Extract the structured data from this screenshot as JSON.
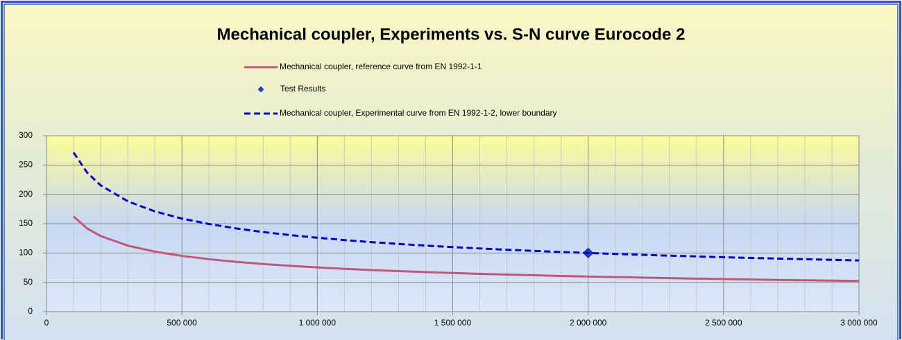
{
  "chart_data": {
    "type": "line",
    "title": "Mechanical coupler, Experiments vs. S-N curve Eurocode 2",
    "series": [
      {
        "name": "Mechanical coupler, reference curve from EN 1992-1-1",
        "color": "#c4557a",
        "style": "solid",
        "x": [
          100000,
          150000,
          200000,
          300000,
          400000,
          500000,
          600000,
          700000,
          800000,
          900000,
          1000000,
          1100000,
          1200000,
          1300000,
          1400000,
          1500000,
          1600000,
          1700000,
          1800000,
          1900000,
          2000000,
          2100000,
          2200000,
          2300000,
          2400000,
          2500000,
          2600000,
          2700000,
          2800000,
          2900000,
          3000000
        ],
        "values": [
          162.4,
          141.9,
          128.9,
          112.6,
          102.3,
          95.0,
          89.4,
          84.9,
          81.2,
          78.1,
          75.4,
          73.0,
          70.9,
          69.1,
          67.4,
          65.8,
          64.4,
          63.2,
          62.0,
          60.9,
          59.8,
          58.9,
          58.0,
          57.1,
          56.3,
          55.5,
          54.8,
          54.1,
          53.5,
          52.9,
          52.3
        ]
      },
      {
        "name": "Test Results",
        "color": "#1f3fbf",
        "style": "marker",
        "x": [
          2000000
        ],
        "values": [
          100
        ]
      },
      {
        "name": "Mechanical coupler, Experimental curve from EN 1992-1-2, lower boundary",
        "color": "#0000cc",
        "style": "dashed",
        "x": [
          100000,
          150000,
          200000,
          300000,
          400000,
          500000,
          600000,
          700000,
          800000,
          900000,
          1000000,
          1100000,
          1200000,
          1300000,
          1400000,
          1500000,
          1600000,
          1700000,
          1800000,
          1900000,
          2000000,
          2100000,
          2200000,
          2300000,
          2400000,
          2500000,
          2600000,
          2700000,
          2800000,
          2900000,
          3000000
        ],
        "values": [
          271.4,
          237.1,
          215.4,
          188.2,
          171.0,
          158.7,
          149.4,
          141.9,
          135.7,
          130.5,
          126.0,
          122.0,
          118.5,
          115.4,
          112.6,
          110.0,
          107.7,
          105.5,
          103.6,
          101.7,
          100.0,
          98.4,
          96.9,
          95.4,
          94.1,
          92.8,
          91.6,
          90.5,
          89.4,
          88.3,
          87.3
        ]
      }
    ],
    "xlim": [
      0,
      3000000
    ],
    "xticks": [
      0,
      {
        "value": 500000,
        "label": "500 000"
      },
      {
        "value": 1000000,
        "label": "1 000 000"
      },
      {
        "value": 1500000,
        "label": "1 500 000"
      },
      {
        "value": 2000000,
        "label": "2 000 000"
      },
      {
        "value": 2500000,
        "label": "2 500 000"
      },
      {
        "value": 3000000,
        "label": "3 000 000"
      }
    ],
    "xminorticks": [
      100000,
      200000,
      300000,
      400000,
      600000,
      700000,
      800000,
      900000,
      1100000,
      1200000,
      1300000,
      1400000,
      1600000,
      1700000,
      1800000,
      1900000,
      2100000,
      2200000,
      2300000,
      2400000,
      2600000,
      2700000,
      2800000,
      2900000
    ],
    "ylim": [
      0,
      300
    ],
    "yticks": [
      0,
      50,
      100,
      150,
      200,
      250,
      300
    ],
    "grid": true
  }
}
